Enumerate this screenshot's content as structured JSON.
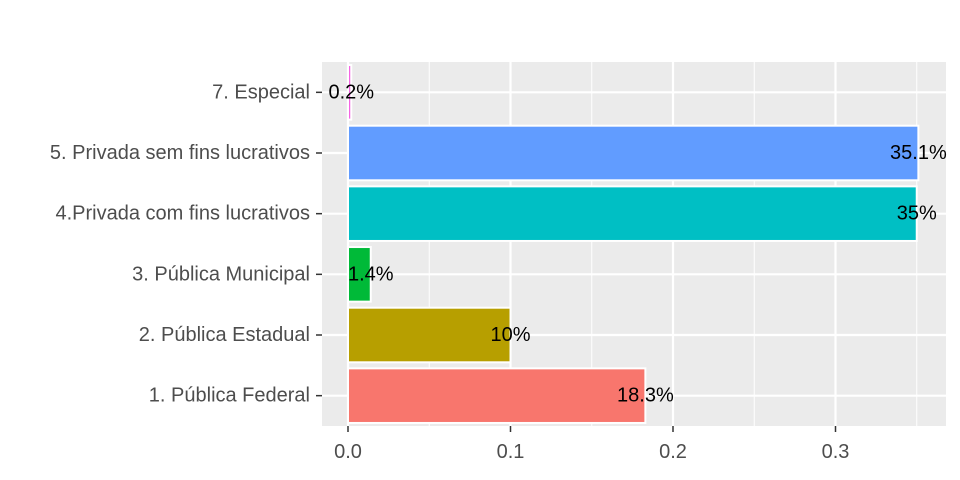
{
  "chart_data": {
    "type": "bar",
    "orientation": "horizontal",
    "categories": [
      "1. Pública Federal",
      "2. Pública Estadual",
      "3. Pública Municipal",
      "4.Privada com fins lucrativos",
      "5. Privada sem fins lucrativos",
      "7. Especial"
    ],
    "values": [
      0.183,
      0.1,
      0.014,
      0.35,
      0.351,
      0.002
    ],
    "data_labels": [
      "18.3%",
      "10%",
      "1.4%",
      "35%",
      "35.1%",
      "0.2%"
    ],
    "colors": [
      "#F8766D",
      "#B79F00",
      "#00BA38",
      "#00BFC4",
      "#619CFF",
      "#F564E3"
    ],
    "xticks": [
      0.0,
      0.1,
      0.2,
      0.3
    ],
    "xtick_labels": [
      "0.0",
      "0.1",
      "0.2",
      "0.3"
    ],
    "xlim": [
      -0.016,
      0.368
    ],
    "grid": true,
    "panel_background": "#EBEBEB",
    "grid_color": "#FFFFFF",
    "title": "",
    "xlabel": "",
    "ylabel": ""
  }
}
